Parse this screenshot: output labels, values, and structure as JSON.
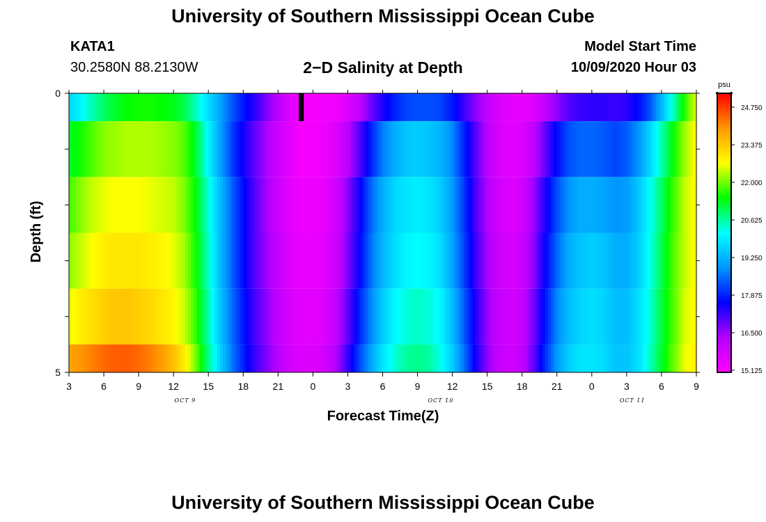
{
  "header": {
    "title": "University of Southern Mississippi Ocean Cube",
    "station_id": "KATA1",
    "station_coords": "30.2580N 88.2130W",
    "chart_title": "2−D Salinity at Depth",
    "model_start_label": "Model Start Time",
    "model_start_value": "10/09/2020 Hour 03"
  },
  "footer": {
    "title": "University of Southern Mississippi Ocean Cube"
  },
  "chart_data": {
    "type": "heatmap",
    "title": "2−D Salinity at Depth",
    "xlabel": "Forecast Time(Z)",
    "ylabel": "Depth (ft)",
    "y_ticks": [
      "0",
      "5"
    ],
    "y_range": [
      0,
      5
    ],
    "x_tick_labels": [
      "3",
      "6",
      "9",
      "12",
      "15",
      "18",
      "21",
      "0",
      "3",
      "6",
      "9",
      "12",
      "15",
      "18",
      "21",
      "0",
      "3",
      "6",
      "9"
    ],
    "date_labels": [
      {
        "text": "OCT 9",
        "hours": 10
      },
      {
        "text": "OCT 10",
        "hours": 32
      },
      {
        "text": "OCT 11",
        "hours": 48.5
      }
    ],
    "x_range_hours": [
      0,
      54
    ],
    "now_marker_hours": 20,
    "colorbar": {
      "unit": "psu",
      "labels": [
        "24.750",
        "23.375",
        "22.000",
        "20.625",
        "19.250",
        "17.875",
        "16.500",
        "15.125"
      ],
      "min": 15.125,
      "max": 25.5,
      "colors": [
        "#ff00ff",
        "#b300ff",
        "#0000ff",
        "#0096ff",
        "#00ffff",
        "#00ff00",
        "#ffff00",
        "#ff9600",
        "#ff0000"
      ]
    },
    "depth_layers": [
      "0-0.5",
      "0.5-1.5",
      "1.5-2.5",
      "2.5-3.5",
      "3.5-4.5",
      "4.5-5"
    ],
    "times_hours": [
      0,
      1,
      2,
      3,
      4,
      5,
      6,
      7,
      8,
      9,
      10,
      11,
      12,
      13,
      14,
      15,
      16,
      17,
      18,
      19,
      20,
      21,
      22,
      23,
      24,
      25,
      26,
      27,
      28,
      29,
      30,
      31,
      32,
      33,
      34,
      35,
      36,
      37,
      38,
      39,
      40,
      41,
      42,
      43,
      44,
      45,
      46,
      47,
      48,
      49,
      50,
      51,
      52,
      53,
      54
    ],
    "salinity_psu": [
      [
        19.8,
        20.2,
        20.7,
        21.1,
        21.4,
        21.6,
        21.7,
        21.7,
        21.6,
        21.5,
        21.2,
        20.6,
        19.9,
        19.2,
        18.5,
        17.9,
        17.4,
        16.8,
        16.3,
        15.7,
        15.3,
        15.3,
        15.3,
        15.4,
        15.7,
        16.2,
        16.9,
        17.5,
        18.0,
        18.3,
        18.4,
        18.4,
        18.3,
        17.9,
        17.3,
        16.7,
        16.2,
        15.8,
        15.6,
        15.5,
        15.7,
        16.2,
        16.7,
        17.1,
        17.3,
        17.4,
        17.4,
        17.3,
        17.4,
        17.8,
        18.4,
        19.4,
        20.6,
        21.8,
        22.8
      ],
      [
        21.4,
        21.7,
        22.0,
        22.3,
        22.4,
        22.5,
        22.5,
        22.5,
        22.4,
        22.3,
        22.0,
        21.3,
        20.2,
        19.2,
        18.3,
        17.6,
        17.0,
        16.5,
        16.0,
        15.6,
        15.3,
        15.3,
        15.4,
        15.7,
        16.3,
        17.1,
        18.0,
        18.8,
        19.3,
        19.6,
        19.7,
        19.6,
        19.4,
        18.9,
        18.0,
        17.1,
        16.3,
        15.8,
        15.6,
        15.7,
        16.2,
        17.0,
        17.8,
        18.4,
        18.6,
        18.6,
        18.5,
        18.3,
        18.5,
        19.0,
        19.8,
        20.7,
        21.6,
        22.4,
        23.0
      ],
      [
        21.9,
        22.3,
        22.6,
        22.8,
        22.9,
        22.9,
        22.9,
        22.8,
        22.7,
        22.6,
        22.2,
        21.5,
        20.5,
        19.5,
        18.6,
        17.8,
        17.1,
        16.5,
        16.0,
        15.6,
        15.4,
        15.4,
        15.5,
        15.9,
        16.7,
        17.6,
        18.6,
        19.3,
        19.8,
        20.0,
        20.1,
        20.0,
        19.7,
        19.1,
        18.2,
        17.2,
        16.4,
        15.9,
        15.7,
        15.9,
        16.6,
        17.5,
        18.4,
        19.0,
        19.3,
        19.3,
        19.2,
        19.0,
        19.1,
        19.6,
        20.3,
        21.1,
        21.9,
        22.6,
        23.0
      ],
      [
        22.3,
        22.6,
        22.9,
        23.1,
        23.2,
        23.2,
        23.2,
        23.1,
        23.0,
        22.8,
        22.4,
        21.6,
        20.6,
        19.5,
        18.6,
        17.8,
        17.1,
        16.6,
        16.1,
        15.7,
        15.5,
        15.5,
        15.6,
        16.0,
        16.8,
        17.7,
        18.7,
        19.4,
        19.9,
        20.2,
        20.3,
        20.2,
        19.9,
        19.2,
        18.3,
        17.3,
        16.5,
        16.0,
        15.8,
        16.0,
        16.7,
        17.7,
        18.6,
        19.3,
        19.6,
        19.7,
        19.6,
        19.3,
        19.3,
        19.7,
        20.4,
        21.2,
        22.0,
        22.6,
        23.0
      ],
      [
        22.8,
        23.1,
        23.3,
        23.5,
        23.6,
        23.6,
        23.5,
        23.4,
        23.2,
        23.0,
        22.6,
        21.8,
        20.7,
        19.6,
        18.7,
        17.9,
        17.2,
        16.7,
        16.2,
        15.8,
        15.6,
        15.6,
        15.7,
        16.2,
        17.0,
        18.0,
        18.9,
        19.7,
        20.2,
        20.5,
        20.6,
        20.5,
        20.2,
        19.5,
        18.5,
        17.5,
        16.6,
        16.1,
        15.9,
        16.1,
        16.9,
        17.9,
        18.9,
        19.5,
        19.8,
        19.9,
        19.8,
        19.5,
        19.5,
        19.9,
        20.5,
        21.3,
        22.0,
        22.7,
        23.0
      ],
      [
        24.0,
        24.2,
        24.4,
        24.6,
        24.7,
        24.7,
        24.6,
        24.4,
        24.1,
        23.7,
        23.1,
        22.1,
        20.9,
        19.8,
        18.8,
        18.0,
        17.3,
        16.8,
        16.3,
        15.9,
        15.7,
        15.7,
        15.9,
        16.4,
        17.3,
        18.3,
        19.2,
        20.0,
        20.5,
        20.8,
        20.9,
        20.8,
        20.4,
        19.7,
        18.7,
        17.6,
        16.7,
        16.1,
        15.9,
        16.2,
        17.0,
        18.1,
        19.1,
        19.7,
        20.0,
        20.0,
        19.9,
        19.6,
        19.6,
        19.9,
        20.6,
        21.4,
        22.1,
        22.8,
        23.1
      ]
    ]
  }
}
